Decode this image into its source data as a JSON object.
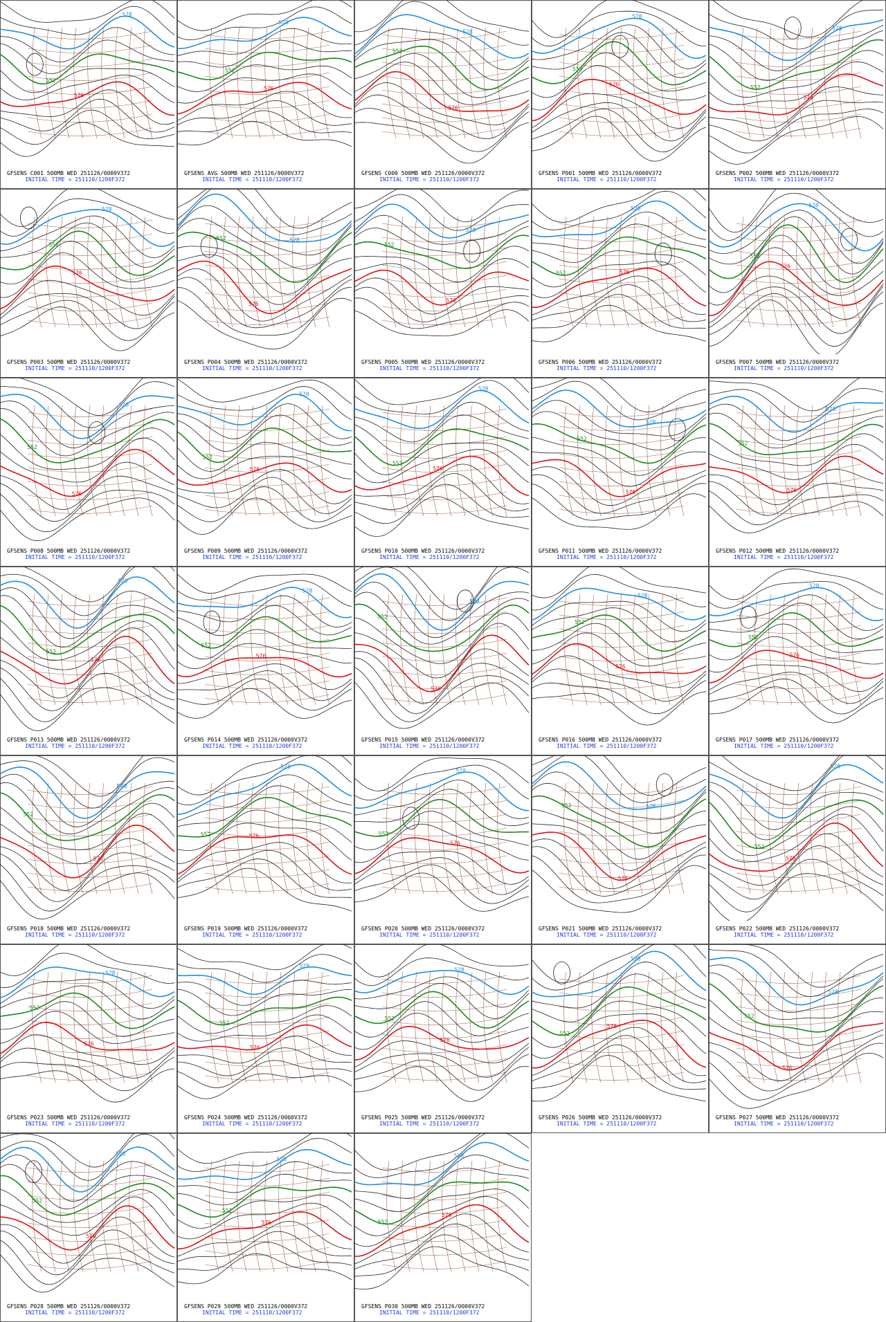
{
  "panels": [
    {
      "title": "GFSENS C001 500MB WED 251126/0000V372",
      "init": "INITIAL TIME = 251110/1200F372",
      "contour_labels": [
        "528",
        "552",
        "576"
      ]
    },
    {
      "title": "GFSENS AVG 500MB WED 251126/0000V372",
      "init": "INITIAL TIME = 251110/1200F372",
      "contour_labels": [
        "528",
        "552",
        "576"
      ]
    },
    {
      "title": "GFSENS C000 500MB WED 251126/0000V372",
      "init": "INITIAL TIME = 251110/1200F372",
      "contour_labels": [
        "528",
        "552",
        "576"
      ]
    },
    {
      "title": "GFSENS P001 500MB WED 251126/0000V372",
      "init": "INITIAL TIME = 251110/1200F372",
      "contour_labels": [
        "528",
        "552",
        "576"
      ]
    },
    {
      "title": "GFSENS P002 500MB WED 251126/0000V372",
      "init": "INITIAL TIME = 251110/1200F372",
      "contour_labels": [
        "528",
        "552",
        "576"
      ]
    },
    {
      "title": "GFSENS P003 500MB WED 251126/0000V372",
      "init": "INITIAL TIME = 251110/1200F372",
      "contour_labels": [
        "528",
        "552",
        "576"
      ]
    },
    {
      "title": "GFSENS P004 500MB WED 251126/0000V372",
      "init": "INITIAL TIME = 251110/1200F372",
      "contour_labels": [
        "528",
        "552",
        "576"
      ]
    },
    {
      "title": "GFSENS P005 500MB WED 251126/0000V372",
      "init": "INITIAL TIME = 251110/1200F372",
      "contour_labels": [
        "528",
        "552",
        "576"
      ]
    },
    {
      "title": "GFSENS P006 500MB WED 251126/0000V372",
      "init": "INITIAL TIME = 251110/1200F372",
      "contour_labels": [
        "528",
        "552",
        "576"
      ]
    },
    {
      "title": "GFSENS P007 500MB WED 251126/0000V372",
      "init": "INITIAL TIME = 251110/1200F372",
      "contour_labels": [
        "528",
        "552",
        "576"
      ]
    },
    {
      "title": "GFSENS P008 500MB WED 251126/0000V372",
      "init": "INITIAL TIME = 251110/1200F372",
      "contour_labels": [
        "528",
        "552",
        "576"
      ]
    },
    {
      "title": "GFSENS P009 500MB WED 251126/0000V372",
      "init": "INITIAL TIME = 251110/1200F372",
      "contour_labels": [
        "528",
        "552",
        "576"
      ]
    },
    {
      "title": "GFSENS P010 500MB WED 251126/0000V372",
      "init": "INITIAL TIME = 251110/1200F372",
      "contour_labels": [
        "528",
        "552",
        "576"
      ]
    },
    {
      "title": "GFSENS P011 500MB WED 251126/0000V372",
      "init": "INITIAL TIME = 251110/1200F372",
      "contour_labels": [
        "528",
        "552",
        "576"
      ]
    },
    {
      "title": "GFSENS P012 500MB WED 251126/0000V372",
      "init": "INITIAL TIME = 251110/1200F372",
      "contour_labels": [
        "528",
        "552",
        "576"
      ]
    },
    {
      "title": "GFSENS P013 500MB WED 251126/0000V372",
      "init": "INITIAL TIME = 251110/1200F372",
      "contour_labels": [
        "528",
        "552",
        "576"
      ]
    },
    {
      "title": "GFSENS P014 500MB WED 251126/0000V372",
      "init": "INITIAL TIME = 251110/1200F372",
      "contour_labels": [
        "528",
        "552",
        "576"
      ]
    },
    {
      "title": "GFSENS P015 500MB WED 251126/0000V372",
      "init": "INITIAL TIME = 251110/1200F372",
      "contour_labels": [
        "528",
        "552",
        "576"
      ]
    },
    {
      "title": "GFSENS P016 500MB WED 251126/0000V372",
      "init": "INITIAL TIME = 251110/1200F372",
      "contour_labels": [
        "528",
        "552",
        "576"
      ]
    },
    {
      "title": "GFSENS P017 500MB WED 251126/0000V372",
      "init": "INITIAL TIME = 251110/1200F372",
      "contour_labels": [
        "528",
        "552",
        "576"
      ]
    },
    {
      "title": "GFSENS P018 500MB WED 251126/0000V372",
      "init": "INITIAL TIME = 251110/1200F372",
      "contour_labels": [
        "528",
        "552",
        "576"
      ]
    },
    {
      "title": "GFSENS P019 500MB WED 251126/0000V372",
      "init": "INITIAL TIME = 251110/1200F372",
      "contour_labels": [
        "528",
        "552",
        "576"
      ]
    },
    {
      "title": "GFSENS P020 500MB WED 251126/0000V372",
      "init": "INITIAL TIME = 251110/1200F372",
      "contour_labels": [
        "528",
        "552",
        "576"
      ]
    },
    {
      "title": "GFSENS P021 500MB WED 251126/0000V372",
      "init": "INITIAL TIME = 251110/1200F372",
      "contour_labels": [
        "528",
        "552",
        "576"
      ]
    },
    {
      "title": "GFSENS P022 500MB WED 251126/0000V372",
      "init": "INITIAL TIME = 251110/1200F372",
      "contour_labels": [
        "528",
        "552",
        "576"
      ]
    },
    {
      "title": "GFSENS P023 500MB WED 251126/0000V372",
      "init": "INITIAL TIME = 251110/1200F372",
      "contour_labels": [
        "528",
        "552",
        "576"
      ]
    },
    {
      "title": "GFSENS P024 500MB WED 251126/0000V372",
      "init": "INITIAL TIME = 251110/1200F372",
      "contour_labels": [
        "528",
        "552",
        "576"
      ]
    },
    {
      "title": "GFSENS P025 500MB WED 251126/0000V372",
      "init": "INITIAL TIME = 251110/1200F372",
      "contour_labels": [
        "528",
        "552",
        "576"
      ]
    },
    {
      "title": "GFSENS P026 500MB WED 251126/0000V372",
      "init": "INITIAL TIME = 251110/1200F372",
      "contour_labels": [
        "528",
        "552",
        "576"
      ]
    },
    {
      "title": "GFSENS P027 500MB WED 251126/0000V372",
      "init": "INITIAL TIME = 251110/1200F372",
      "contour_labels": [
        "528",
        "552",
        "576"
      ]
    },
    {
      "title": "GFSENS P028 500MB WED 251126/0000V372",
      "init": "INITIAL TIME = 251110/1200F372",
      "contour_labels": [
        "528",
        "552",
        "576"
      ]
    },
    {
      "title": "GFSENS P029 500MB WED 251126/0000V372",
      "init": "INITIAL TIME = 251110/1200F372",
      "contour_labels": [
        "528",
        "552",
        "576"
      ]
    },
    {
      "title": "GFSENS P030 500MB WED 251126/0000V372",
      "init": "INITIAL TIME = 251110/1200F372",
      "contour_labels": [
        "528",
        "552",
        "576"
      ]
    }
  ]
}
